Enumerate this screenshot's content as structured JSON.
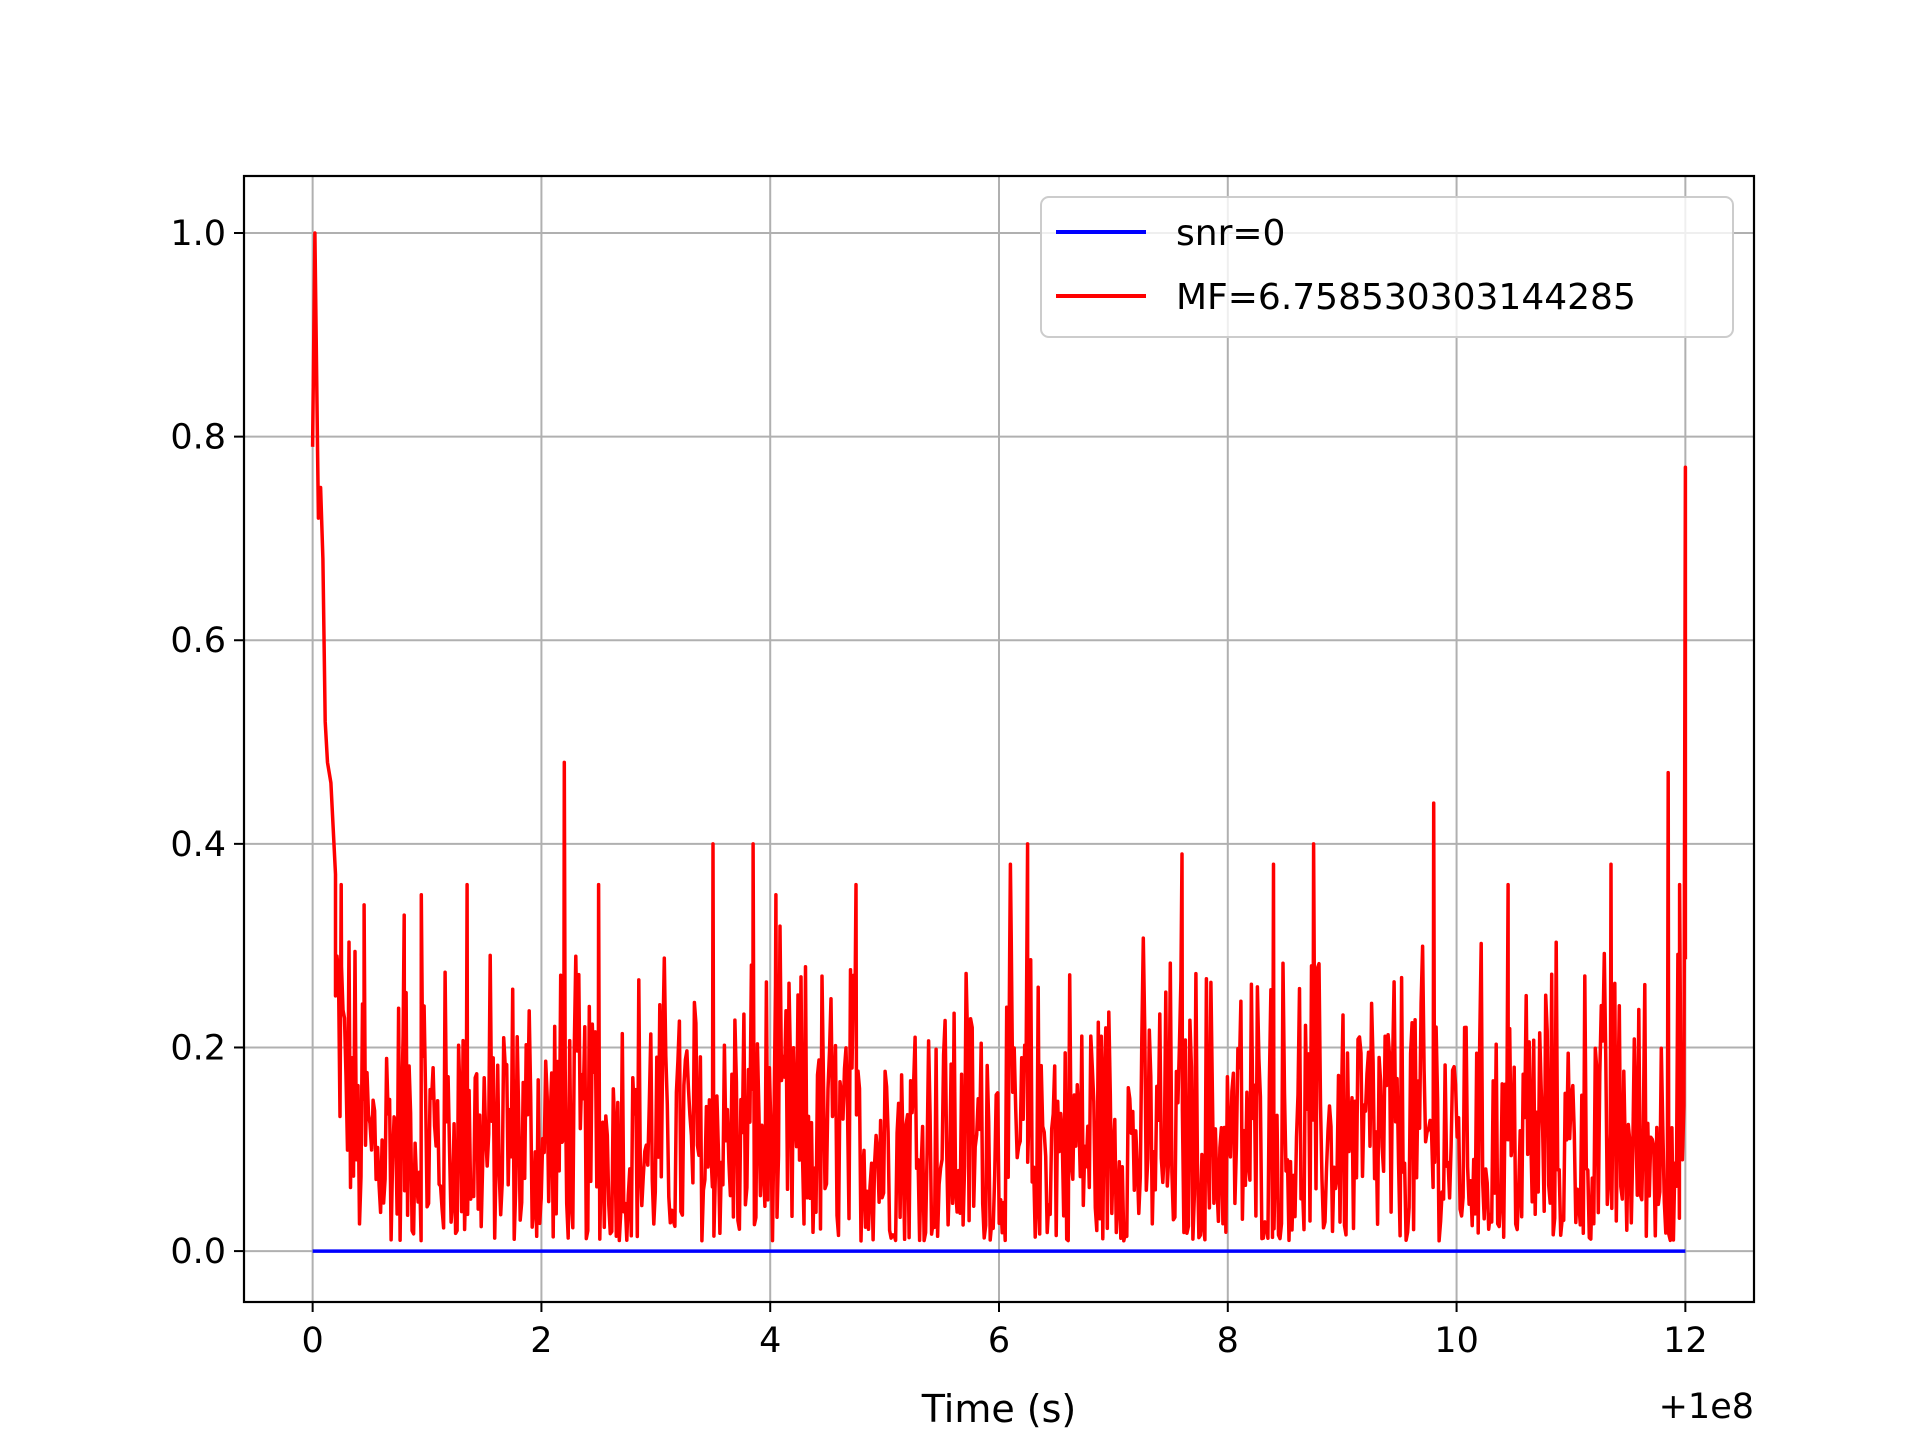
{
  "chart_data": {
    "type": "line",
    "title": "",
    "xlabel": "Time (s)",
    "ylabel": "",
    "x_offset_label": "+1e8",
    "xlim": [
      -0.6,
      12.6
    ],
    "ylim": [
      -0.05,
      1.056
    ],
    "xticks": [
      0,
      2,
      4,
      6,
      8,
      10,
      12
    ],
    "xtick_labels": [
      "0",
      "2",
      "4",
      "6",
      "8",
      "10",
      "12"
    ],
    "yticks": [
      0.0,
      0.2,
      0.4,
      0.6,
      0.8,
      1.0
    ],
    "ytick_labels": [
      "0.0",
      "0.2",
      "0.4",
      "0.6",
      "0.8",
      "1.0"
    ],
    "grid": true,
    "legend_position": "top-right",
    "series": [
      {
        "name": "snr=0",
        "color": "#0000ff",
        "x": [
          0,
          12
        ],
        "y": [
          0.0,
          0.0
        ]
      },
      {
        "name": "MF=6.758530303144285",
        "color": "#ff0000",
        "x_range": [
          0,
          12
        ],
        "noise_band": [
          0.01,
          0.3
        ],
        "peaks": [
          {
            "x": 0.0,
            "y": 0.79
          },
          {
            "x": 0.02,
            "y": 1.0
          },
          {
            "x": 0.05,
            "y": 0.72
          },
          {
            "x": 0.07,
            "y": 0.75
          },
          {
            "x": 0.09,
            "y": 0.68
          },
          {
            "x": 0.11,
            "y": 0.52
          },
          {
            "x": 0.13,
            "y": 0.48
          },
          {
            "x": 0.16,
            "y": 0.46
          },
          {
            "x": 0.2,
            "y": 0.37
          },
          {
            "x": 0.25,
            "y": 0.36
          },
          {
            "x": 0.45,
            "y": 0.34
          },
          {
            "x": 0.8,
            "y": 0.33
          },
          {
            "x": 0.95,
            "y": 0.35
          },
          {
            "x": 1.35,
            "y": 0.36
          },
          {
            "x": 2.2,
            "y": 0.48
          },
          {
            "x": 2.5,
            "y": 0.36
          },
          {
            "x": 3.5,
            "y": 0.4
          },
          {
            "x": 3.85,
            "y": 0.4
          },
          {
            "x": 4.05,
            "y": 0.35
          },
          {
            "x": 4.75,
            "y": 0.36
          },
          {
            "x": 6.1,
            "y": 0.38
          },
          {
            "x": 6.25,
            "y": 0.4
          },
          {
            "x": 7.6,
            "y": 0.39
          },
          {
            "x": 8.4,
            "y": 0.38
          },
          {
            "x": 8.75,
            "y": 0.4
          },
          {
            "x": 9.8,
            "y": 0.44
          },
          {
            "x": 10.45,
            "y": 0.36
          },
          {
            "x": 11.35,
            "y": 0.38
          },
          {
            "x": 11.85,
            "y": 0.47
          },
          {
            "x": 11.95,
            "y": 0.36
          },
          {
            "x": 12.0,
            "y": 0.77
          }
        ]
      }
    ]
  }
}
